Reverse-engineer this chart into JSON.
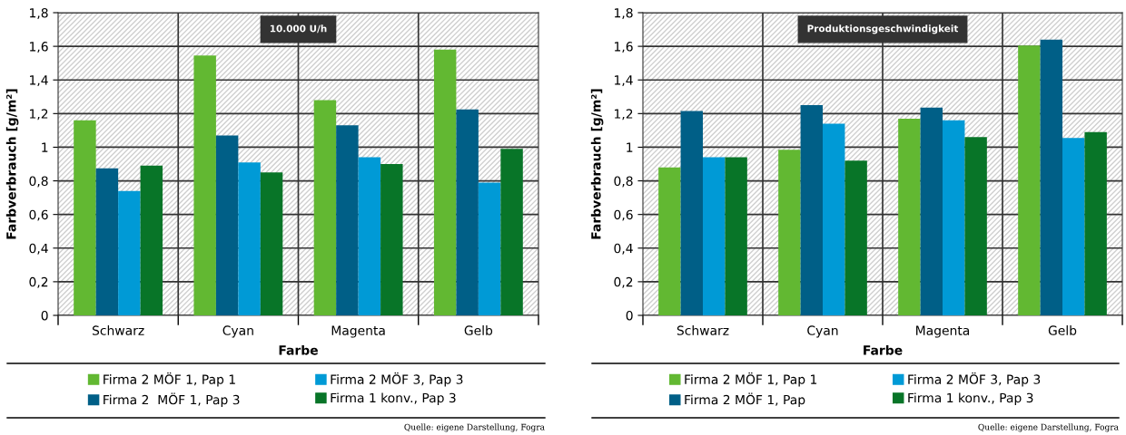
{
  "chart_data": [
    {
      "type": "bar",
      "title": "10.000 U/h",
      "xlabel": "Farbe",
      "ylabel": "Farbverbrauch [g/m²]",
      "categories": [
        "Schwarz",
        "Cyan",
        "Magenta",
        "Gelb"
      ],
      "series": [
        {
          "name": "Firma 2 MÖF 1, Pap 1",
          "color": "#62b832",
          "values": [
            1.16,
            1.545,
            1.28,
            1.58
          ]
        },
        {
          "name": "Firma 2  MÖF 1, Pap 3",
          "color": "#005f87",
          "values": [
            0.875,
            1.07,
            1.13,
            1.225
          ]
        },
        {
          "name": "Firma 2 MÖF 3, Pap 3",
          "color": "#009ad6",
          "values": [
            0.74,
            0.91,
            0.94,
            0.79
          ]
        },
        {
          "name": "Firma 1 konv., Pap 3",
          "color": "#087528",
          "values": [
            0.89,
            0.85,
            0.9,
            0.99
          ]
        }
      ],
      "ylim": [
        0,
        1.8
      ],
      "yticks": [
        {
          "value": 0,
          "label": "0"
        },
        {
          "value": 0.2,
          "label": "0,2"
        },
        {
          "value": 0.4,
          "label": "0,4"
        },
        {
          "value": 0.6,
          "label": "0,6"
        },
        {
          "value": 0.8,
          "label": "0,8"
        },
        {
          "value": 1,
          "label": "1"
        },
        {
          "value": 1.2,
          "label": "1,2"
        },
        {
          "value": 1.4,
          "label": "1,4"
        },
        {
          "value": 1.6,
          "label": "1,6"
        },
        {
          "value": 1.8,
          "label": "1,8"
        }
      ],
      "grid": true,
      "legend": "bottom",
      "annotations": [
        "Quelle: eigene Darstellung, Fogra"
      ]
    },
    {
      "type": "bar",
      "title": "Produktionsgeschwindigkeit",
      "xlabel": "Farbe",
      "ylabel": "Farbverbrauch [g/m²]",
      "categories": [
        "Schwarz",
        "Cyan",
        "Magenta",
        "Gelb"
      ],
      "series": [
        {
          "name": "Firma 2 MÖF 1, Pap 1",
          "color": "#62b832",
          "values": [
            0.88,
            0.985,
            1.17,
            1.605
          ]
        },
        {
          "name": "Firma 2 MÖF 1, Pap",
          "color": "#005f87",
          "values": [
            1.215,
            1.25,
            1.235,
            1.64
          ]
        },
        {
          "name": "Firma 2 MÖF 3, Pap 3",
          "color": "#009ad6",
          "values": [
            0.94,
            1.14,
            1.16,
            1.055
          ]
        },
        {
          "name": "Firma 1 konv., Pap 3",
          "color": "#087528",
          "values": [
            0.94,
            0.92,
            1.06,
            1.09
          ]
        }
      ],
      "ylim": [
        0,
        1.8
      ],
      "yticks": [
        {
          "value": 0,
          "label": "0"
        },
        {
          "value": 0.2,
          "label": "0,2"
        },
        {
          "value": 0.4,
          "label": "0,4"
        },
        {
          "value": 0.6,
          "label": "0,6"
        },
        {
          "value": 0.8,
          "label": "0,8"
        },
        {
          "value": 1,
          "label": "1"
        },
        {
          "value": 1.2,
          "label": "1,2"
        },
        {
          "value": 1.4,
          "label": "1,4"
        },
        {
          "value": 1.6,
          "label": "1,6"
        },
        {
          "value": 1.8,
          "label": "1,8"
        }
      ],
      "grid": true,
      "legend": "bottom",
      "annotations": [
        "Quelle: eigene Darstellung, Fogra"
      ]
    }
  ]
}
